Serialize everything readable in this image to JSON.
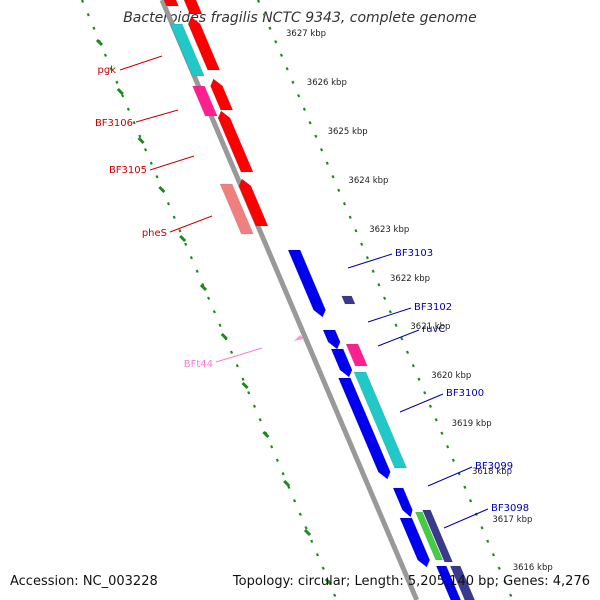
{
  "title": "Bacteroides fragilis NCTC 9343, complete genome",
  "accession_text": "Accession: NC_003228",
  "topology_text": "Topology: circular; Length: 5,205,140 bp; Genes: 4,276",
  "colors": {
    "backbone": "#999999",
    "ticks": "#1a8a1a",
    "forward_gene": "#ff0000",
    "forward_pseudo": "#f08080",
    "forward_pink": "#ff2090",
    "reverse_gene": "#0000ee",
    "reverse_dark": "#3a3a8c",
    "cyan_gene": "#20c8c8",
    "green_gene": "#44cc44",
    "trna": "#ff99cc",
    "label_red": "#cc0000",
    "label_blue": "#0000aa",
    "label_pink": "#ff77cc"
  },
  "scale_labels": [
    "3627 kbp",
    "3626 kbp",
    "3625 kbp",
    "3624 kbp",
    "3623 kbp",
    "3622 kbp",
    "3621 kbp",
    "3620 kbp",
    "3619 kbp",
    "3618 kbp",
    "3617 kbp",
    "3616 kbp"
  ],
  "gene_labels": [
    "pgk",
    "BF3106",
    "BF3105",
    "pheS",
    "BFt44",
    "BF3103",
    "BF3102",
    "ruvC",
    "BF3100",
    "BF3099",
    "BF3098"
  ]
}
